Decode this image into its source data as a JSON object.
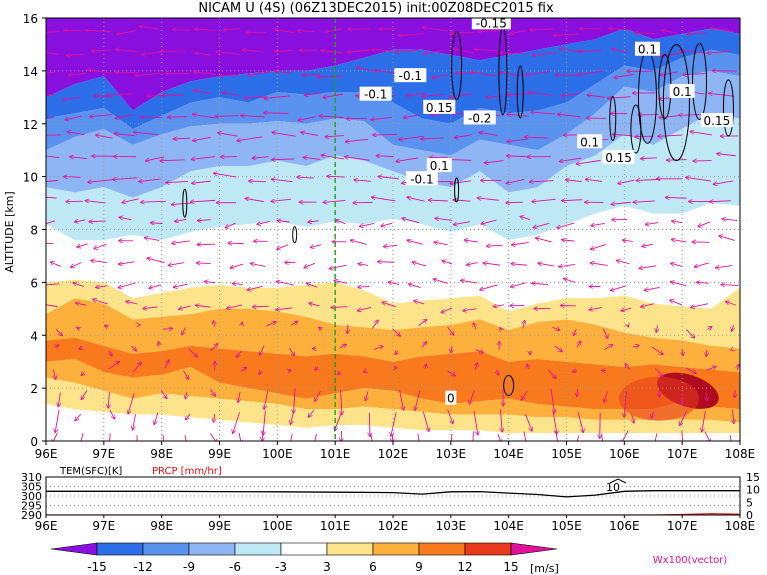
{
  "title": "NICAM U (4S) (06Z13DEC2015) init:00Z08DEC2015 fix",
  "colors": {
    "magenta": "#e0129a",
    "green_line": "#1ea01e",
    "contour": "#000000",
    "temperature_line": "#000000",
    "precip_line": "#e01010",
    "levels": [
      "#8a10e0",
      "#2c6ee8",
      "#5a92f0",
      "#8fb6f4",
      "#bde8f4",
      "#ffffff",
      "#fde48a",
      "#fdb03c",
      "#f87a1c",
      "#e83a1c",
      "#b00c20",
      "#e0129a"
    ]
  },
  "chart_data": [
    {
      "type": "heatmap",
      "title": "NICAM U (4S) (06Z13DEC2015) init:00Z08DEC2015 fix",
      "ylabel": "ALTITUDE [km]",
      "x_ticks": [
        "96E",
        "97E",
        "98E",
        "99E",
        "100E",
        "101E",
        "102E",
        "103E",
        "104E",
        "105E",
        "106E",
        "107E",
        "108E"
      ],
      "y_ticks": [
        "0",
        "2",
        "4",
        "6",
        "8",
        "10",
        "12",
        "14",
        "16"
      ],
      "xlim": [
        96,
        108
      ],
      "ylim": [
        0,
        16
      ],
      "grid": true,
      "marker_line_lon": 101,
      "colorbar_ticks": [
        "-15",
        "-12",
        "-9",
        "-6",
        "-3",
        "3",
        "6",
        "9",
        "12",
        "15"
      ],
      "colorbar_unit": "[m/s]",
      "vector_label": "Wx100(vector)",
      "contour_labels": [
        {
          "text": "-0.15",
          "lon": 103.7,
          "alt": 15.8
        },
        {
          "text": "0.1",
          "lon": 106.4,
          "alt": 14.8
        },
        {
          "text": "-0.1",
          "lon": 102.3,
          "alt": 13.8
        },
        {
          "text": "0.1",
          "lon": 107.0,
          "alt": 13.2
        },
        {
          "text": "-0.1",
          "lon": 101.7,
          "alt": 13.1
        },
        {
          "text": "0.15",
          "lon": 102.8,
          "alt": 12.6
        },
        {
          "text": "-0.2",
          "lon": 103.5,
          "alt": 12.2
        },
        {
          "text": "0.15",
          "lon": 107.6,
          "alt": 12.1
        },
        {
          "text": "0.1",
          "lon": 105.4,
          "alt": 11.3
        },
        {
          "text": "0.15",
          "lon": 105.9,
          "alt": 10.7
        },
        {
          "text": "0.1",
          "lon": 102.8,
          "alt": 10.4
        },
        {
          "text": "-0.1",
          "lon": 102.5,
          "alt": 9.9
        },
        {
          "text": "0",
          "lon": 103.0,
          "alt": 1.6
        }
      ]
    },
    {
      "type": "line",
      "series": [
        {
          "name": "TEM(SFC)[K]",
          "color": "#000000",
          "x": [
            96,
            97,
            98,
            99,
            100,
            101,
            102,
            102.5,
            103,
            103.5,
            104,
            104.5,
            105,
            105.5,
            106,
            106.5,
            107,
            108
          ],
          "y": [
            302.5,
            302.5,
            302.5,
            302.3,
            302.2,
            302,
            301.8,
            301,
            302.2,
            302.3,
            301.5,
            300.8,
            299.5,
            300.5,
            302.5,
            302.8,
            302.8,
            302.8
          ]
        },
        {
          "name": "PRCP [mm/hr]",
          "color": "#e01010",
          "x": [
            96,
            106.5,
            107,
            107.5,
            108
          ],
          "y": [
            0,
            0,
            0.2,
            0.5,
            0.3
          ]
        }
      ],
      "x_ticks": [
        "96E",
        "97E",
        "98E",
        "99E",
        "100E",
        "101E",
        "102E",
        "103E",
        "104E",
        "105E",
        "106E",
        "107E",
        "108E"
      ],
      "y_left_ticks": [
        "290",
        "295",
        "300",
        "305",
        "310"
      ],
      "y_right_ticks": [
        "0",
        "5",
        "10",
        "15"
      ],
      "ylim_left": [
        290,
        310
      ],
      "ylim_right": [
        0,
        15
      ],
      "xlim": [
        96,
        108
      ],
      "line_label": "10",
      "labels": {
        "temperature": "TEM(SFC)[K]",
        "precip": "PRCP [mm/hr]"
      }
    }
  ]
}
